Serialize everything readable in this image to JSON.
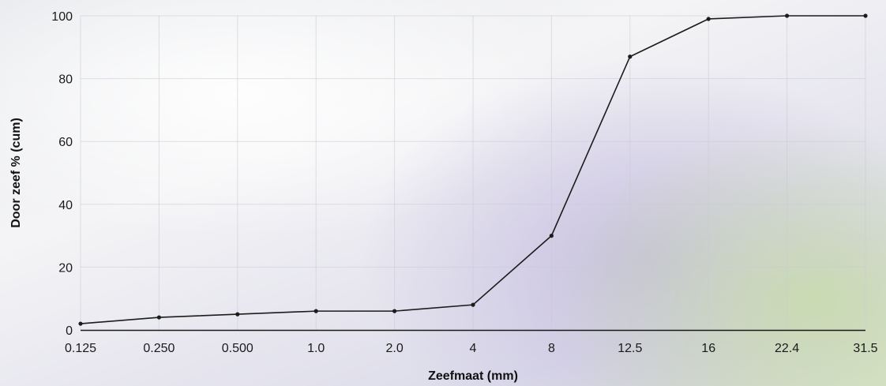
{
  "chart_data": {
    "type": "line",
    "title": "",
    "xlabel": "Zeefmaat (mm)",
    "ylabel": "Door zeef % (cum)",
    "categories": [
      "0.125",
      "0.250",
      "0.500",
      "1.0",
      "2.0",
      "4",
      "8",
      "12.5",
      "16",
      "22.4",
      "31.5"
    ],
    "series": [
      {
        "values": [
          2,
          4,
          5,
          6,
          6,
          8,
          30,
          87,
          99,
          100,
          100
        ]
      }
    ],
    "ylim": [
      0,
      100
    ],
    "yticks": [
      0,
      20,
      40,
      60,
      80,
      100
    ],
    "grid": true,
    "legend": "none",
    "colors": {
      "line": "#1c1c1c",
      "grid": "#c9cad2",
      "axis": "#1a1a1a"
    }
  }
}
